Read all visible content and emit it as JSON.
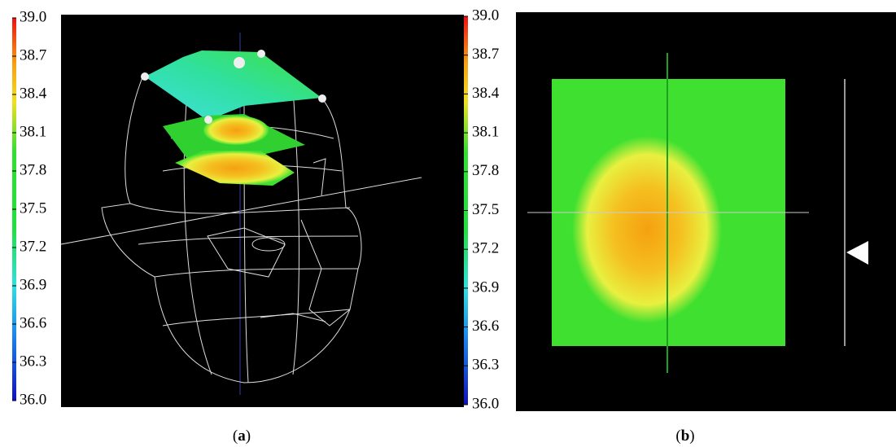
{
  "panels": [
    {
      "caption_parts": [
        "(",
        "a",
        ")"
      ],
      "colorbar": {
        "range": [
          36,
          39
        ],
        "ticks": [
          {
            "value": 39,
            "label": "39.0"
          },
          38.7,
          38.4,
          38.1,
          37.8,
          37.5,
          37.2,
          36.9,
          36.6,
          36.3,
          {
            "value": 36,
            "label": "36.0"
          }
        ]
      }
    },
    {
      "caption_parts": [
        "(",
        "b",
        ")"
      ],
      "colorbar": {
        "range": [
          36,
          39
        ],
        "ticks": [
          {
            "value": 39,
            "label": "39.0"
          },
          38.7,
          38.4,
          38.1,
          37.8,
          37.5,
          37.2,
          36.9,
          36.6,
          36.3,
          {
            "value": 36,
            "label": "36.0"
          }
        ]
      }
    }
  ]
}
